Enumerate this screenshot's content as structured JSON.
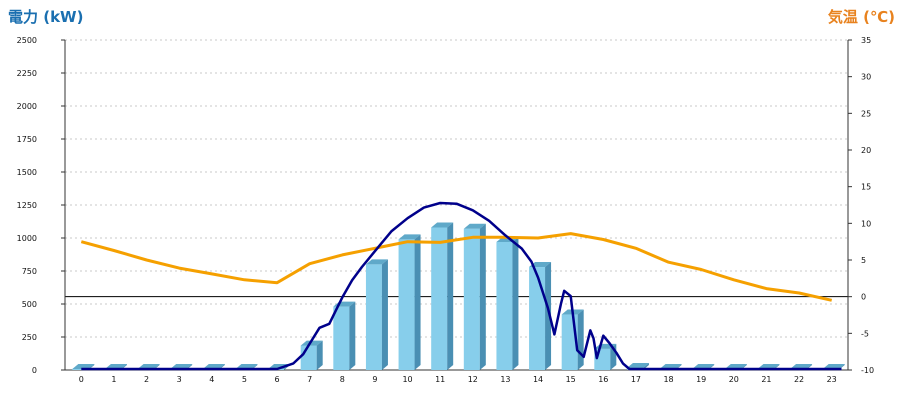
{
  "chart_data": {
    "type": "bar+line",
    "left_axis_title": "電力 (kW)",
    "right_axis_title": "気温 (℃)",
    "left_axis": {
      "min": 0,
      "max": 2500,
      "step": 250,
      "ticks": [
        "0",
        "250",
        "500",
        "750",
        "1000",
        "1250",
        "1500",
        "1750",
        "2000",
        "2250",
        "2500"
      ]
    },
    "right_axis": {
      "min": -10,
      "max": 35,
      "step": 5,
      "ticks": [
        "-10",
        "-5",
        "0",
        "5",
        "10",
        "15",
        "20",
        "25",
        "30",
        "35"
      ]
    },
    "categories": [
      "0",
      "1",
      "2",
      "3",
      "4",
      "5",
      "6",
      "7",
      "8",
      "9",
      "10",
      "11",
      "12",
      "13",
      "14",
      "15",
      "16",
      "17",
      "18",
      "19",
      "20",
      "21",
      "22",
      "23"
    ],
    "bar_series": {
      "values": [
        0,
        0,
        0,
        0,
        0,
        0,
        0,
        185,
        480,
        800,
        990,
        1080,
        1070,
        970,
        780,
        420,
        160,
        15,
        0,
        0,
        0,
        0,
        0,
        0
      ],
      "color": "#87ceeb"
    },
    "power_line": {
      "color": "#00008b",
      "points": [
        [
          0,
          0
        ],
        [
          5,
          0
        ],
        [
          6,
          0
        ],
        [
          6.5,
          50
        ],
        [
          6.8,
          120
        ],
        [
          7,
          200
        ],
        [
          7.3,
          320
        ],
        [
          7.6,
          350
        ],
        [
          7.8,
          450
        ],
        [
          8,
          550
        ],
        [
          8.3,
          680
        ],
        [
          8.6,
          780
        ],
        [
          9,
          900
        ],
        [
          9.5,
          1050
        ],
        [
          10,
          1150
        ],
        [
          10.5,
          1230
        ],
        [
          11,
          1265
        ],
        [
          11.5,
          1260
        ],
        [
          12,
          1210
        ],
        [
          12.5,
          1130
        ],
        [
          13,
          1020
        ],
        [
          13.5,
          920
        ],
        [
          13.8,
          820
        ],
        [
          14,
          700
        ],
        [
          14.3,
          470
        ],
        [
          14.5,
          270
        ],
        [
          14.7,
          500
        ],
        [
          14.8,
          600
        ],
        [
          15,
          560
        ],
        [
          15.2,
          150
        ],
        [
          15.4,
          100
        ],
        [
          15.6,
          300
        ],
        [
          15.7,
          240
        ],
        [
          15.8,
          90
        ],
        [
          16,
          260
        ],
        [
          16.2,
          200
        ],
        [
          16.4,
          130
        ],
        [
          16.6,
          50
        ],
        [
          16.8,
          0
        ],
        [
          17,
          0
        ],
        [
          23.3,
          0
        ]
      ]
    },
    "temperature_line": {
      "color": "#f5a000",
      "points": [
        [
          0,
          7.5
        ],
        [
          1,
          6.3
        ],
        [
          2,
          5
        ],
        [
          3,
          3.9
        ],
        [
          4,
          3.1
        ],
        [
          5,
          2.3
        ],
        [
          6,
          1.9
        ],
        [
          7,
          4.5
        ],
        [
          8,
          5.7
        ],
        [
          9,
          6.6
        ],
        [
          10,
          7.5
        ],
        [
          11,
          7.4
        ],
        [
          12,
          8.1
        ],
        [
          13,
          8.1
        ],
        [
          14,
          8
        ],
        [
          15,
          8.6
        ],
        [
          16,
          7.8
        ],
        [
          17,
          6.6
        ],
        [
          18,
          4.7
        ],
        [
          19,
          3.7
        ],
        [
          20,
          2.3
        ],
        [
          21,
          1.1
        ],
        [
          22,
          0.5
        ],
        [
          23,
          -0.5
        ]
      ]
    },
    "grid": true
  }
}
